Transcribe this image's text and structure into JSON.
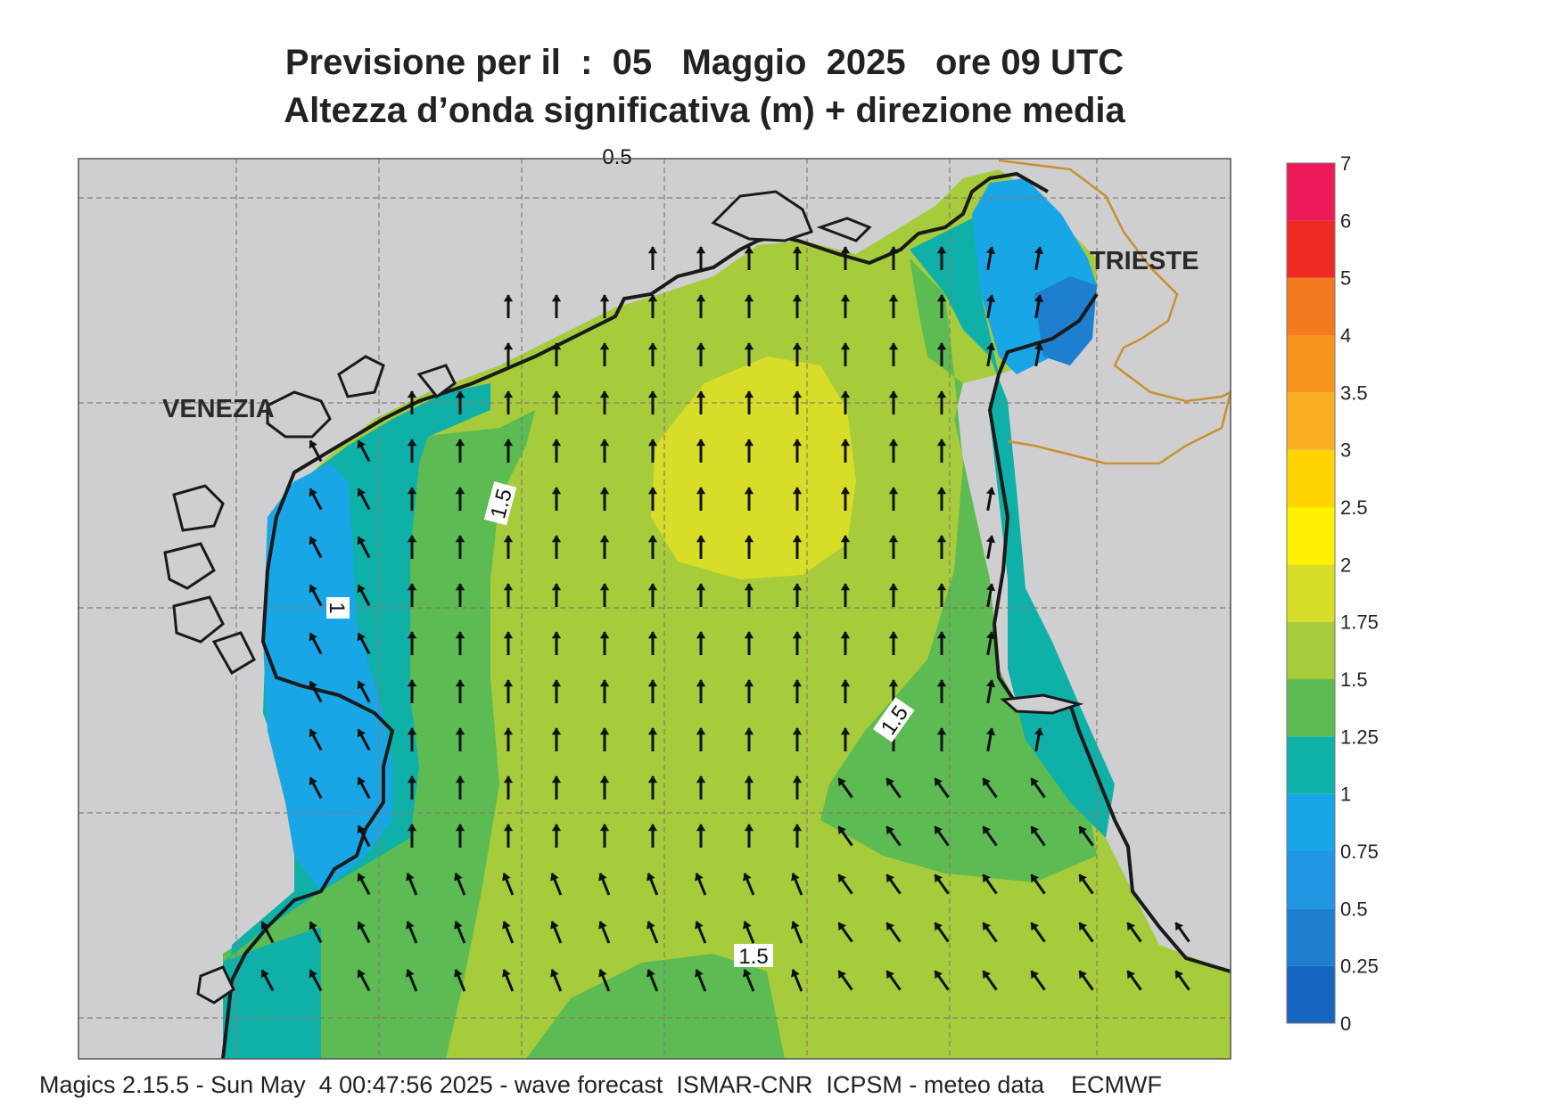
{
  "header": {
    "title_line1": "Previsione per il  :  05   Maggio  2025   ore 09 UTC",
    "title_line2": "Altezza d’onda significativa (m) + direzione media"
  },
  "map": {
    "cities": [
      {
        "name": "VENEZIA"
      },
      {
        "name": "TRIESTE"
      }
    ],
    "contour_labels": [
      "1.5",
      "1",
      "1.5",
      "1.5",
      "0.5"
    ],
    "colors": {
      "land": "#cfcfd1",
      "coastline": "#1a1a1a",
      "border": "#c8912d",
      "grid": "#8a7a6a"
    }
  },
  "legend": {
    "ticks": [
      "0",
      "0.25",
      "0.5",
      "0.75",
      "1",
      "1.25",
      "1.5",
      "1.75",
      "2",
      "2.5",
      "3",
      "3.5",
      "4",
      "5",
      "6",
      "7"
    ],
    "colors": [
      "#1565c0",
      "#1e7fd0",
      "#2196e3",
      "#19a6e6",
      "#0fb0a8",
      "#5cbb52",
      "#a6cc3c",
      "#d8de28",
      "#fff200",
      "#ffd400",
      "#fbb024",
      "#f7941e",
      "#f47a20",
      "#ee2a24",
      "#ec1a5a"
    ]
  },
  "footer": {
    "text": "Magics 2.15.5 - Sun May  4 00:47:56 2025 - wave forecast  ISMAR-CNR  ICPSM - meteo data    ECMWF"
  }
}
